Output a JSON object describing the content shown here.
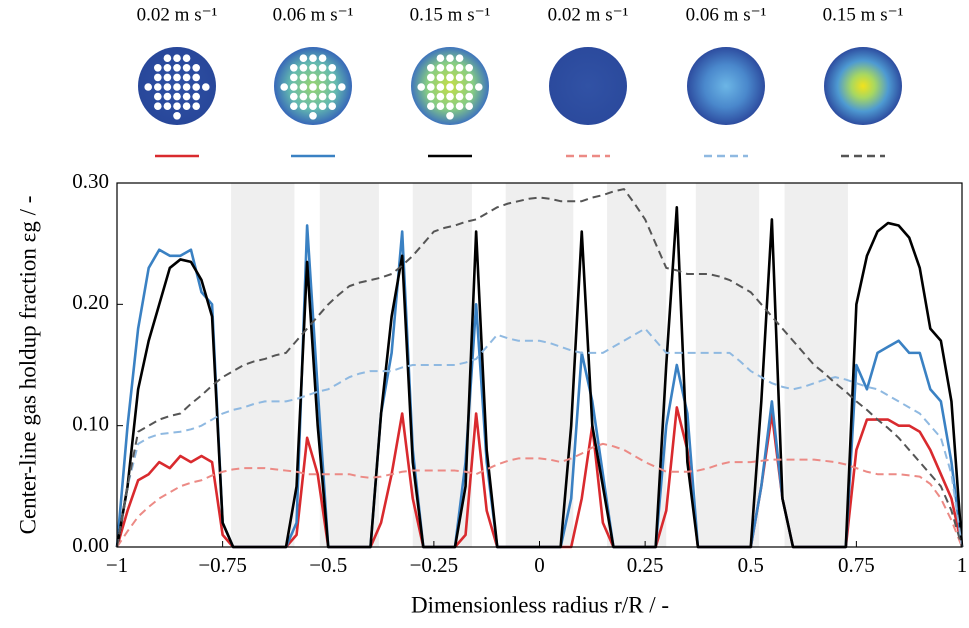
{
  "chart_data": {
    "type": "line",
    "xlabel": "Dimensionless radius r/R / -",
    "ylabel": "Center-line gas holdup fraction εg / -",
    "xlim": [
      -1,
      1
    ],
    "ylim": [
      0,
      0.3
    ],
    "xticks": [
      {
        "value": -1,
        "label": "−1"
      },
      {
        "value": -0.75,
        "label": "−0.75"
      },
      {
        "value": -0.5,
        "label": "−0.5"
      },
      {
        "value": -0.25,
        "label": "−0.25"
      },
      0,
      0.25,
      0.5,
      0.75,
      1
    ],
    "yticks": [
      {
        "value": 0,
        "label": "0.00"
      },
      {
        "value": 0.1,
        "label": "0.10"
      },
      {
        "value": 0.2,
        "label": "0.20"
      },
      {
        "value": 0.3,
        "label": "0.30"
      }
    ],
    "shaded_regions": [
      [
        -0.73,
        -0.58
      ],
      [
        -0.52,
        -0.38
      ],
      [
        -0.3,
        -0.16
      ],
      [
        -0.08,
        0.08
      ],
      [
        0.16,
        0.3
      ],
      [
        0.37,
        0.52
      ],
      [
        0.58,
        0.73
      ]
    ],
    "x": [
      -1,
      -0.975,
      -0.95,
      -0.925,
      -0.9,
      -0.875,
      -0.85,
      -0.825,
      -0.8,
      -0.775,
      -0.75,
      -0.725,
      -0.7,
      -0.675,
      -0.65,
      -0.625,
      -0.6,
      -0.575,
      -0.55,
      -0.525,
      -0.5,
      -0.475,
      -0.45,
      -0.425,
      -0.4,
      -0.375,
      -0.35,
      -0.325,
      -0.3,
      -0.275,
      -0.25,
      -0.225,
      -0.2,
      -0.175,
      -0.15,
      -0.125,
      -0.1,
      -0.075,
      -0.05,
      -0.025,
      0,
      0.025,
      0.05,
      0.075,
      0.1,
      0.125,
      0.15,
      0.175,
      0.2,
      0.225,
      0.25,
      0.275,
      0.3,
      0.325,
      0.35,
      0.375,
      0.4,
      0.425,
      0.45,
      0.475,
      0.5,
      0.525,
      0.55,
      0.575,
      0.6,
      0.625,
      0.65,
      0.675,
      0.7,
      0.725,
      0.75,
      0.775,
      0.8,
      0.825,
      0.85,
      0.875,
      0.9,
      0.925,
      0.95,
      0.975,
      1
    ],
    "series": [
      {
        "name": "0.02 m s⁻¹",
        "color": "#d92a2e",
        "linestyle": "solid",
        "values": [
          0,
          0.03,
          0.055,
          0.06,
          0.07,
          0.065,
          0.075,
          0.07,
          0.075,
          0.07,
          0.01,
          0,
          0,
          0,
          0,
          0,
          0,
          0.01,
          0.09,
          0.06,
          0,
          0,
          0,
          0,
          0,
          0.02,
          0.06,
          0.11,
          0.04,
          0,
          0,
          0,
          0,
          0.01,
          0.11,
          0.03,
          0,
          0,
          0,
          0,
          0,
          0,
          0,
          0,
          0.04,
          0.1,
          0.02,
          0,
          0,
          0,
          0,
          0,
          0.03,
          0.115,
          0.08,
          0,
          0,
          0,
          0,
          0,
          0,
          0.05,
          0.11,
          0.04,
          0,
          0,
          0,
          0,
          0,
          0,
          0.08,
          0.105,
          0.105,
          0.105,
          0.1,
          0.1,
          0.095,
          0.08,
          0.06,
          0.04,
          0
        ]
      },
      {
        "name": "0.06 m s⁻¹",
        "color": "#3a81c3",
        "linestyle": "solid",
        "values": [
          0,
          0.1,
          0.18,
          0.23,
          0.245,
          0.24,
          0.24,
          0.245,
          0.21,
          0.2,
          0.02,
          0,
          0,
          0,
          0,
          0,
          0,
          0.02,
          0.265,
          0.13,
          0,
          0,
          0,
          0,
          0,
          0.11,
          0.16,
          0.26,
          0.08,
          0,
          0,
          0,
          0,
          0.07,
          0.2,
          0.07,
          0,
          0,
          0,
          0,
          0,
          0,
          0,
          0.04,
          0.16,
          0.12,
          0.06,
          0,
          0,
          0,
          0,
          0,
          0.1,
          0.15,
          0.11,
          0,
          0,
          0,
          0,
          0,
          0,
          0.05,
          0.12,
          0.04,
          0,
          0,
          0,
          0,
          0,
          0,
          0.15,
          0.13,
          0.16,
          0.165,
          0.17,
          0.16,
          0.16,
          0.13,
          0.12,
          0.07,
          0
        ]
      },
      {
        "name": "0.15 m s⁻¹",
        "color": "#000000",
        "linestyle": "solid",
        "values": [
          0,
          0.05,
          0.13,
          0.17,
          0.2,
          0.23,
          0.237,
          0.235,
          0.22,
          0.19,
          0.02,
          0,
          0,
          0,
          0,
          0,
          0,
          0.05,
          0.235,
          0.1,
          0,
          0,
          0,
          0,
          0,
          0.11,
          0.19,
          0.24,
          0.07,
          0,
          0,
          0,
          0,
          0.05,
          0.26,
          0.08,
          0,
          0,
          0,
          0,
          0,
          0,
          0,
          0.1,
          0.26,
          0.1,
          0.05,
          0,
          0,
          0,
          0,
          0,
          0.15,
          0.28,
          0.07,
          0,
          0,
          0,
          0,
          0,
          0,
          0.12,
          0.27,
          0.04,
          0,
          0,
          0,
          0,
          0,
          0,
          0.2,
          0.24,
          0.26,
          0.267,
          0.265,
          0.255,
          0.23,
          0.18,
          0.17,
          0.12,
          0
        ]
      },
      {
        "name": "0.02 m s⁻¹",
        "color": "#ec8a85",
        "linestyle": "dashed",
        "values": [
          0,
          0.013,
          0.025,
          0.033,
          0.04,
          0.045,
          0.05,
          0.053,
          0.055,
          0.059,
          0.062,
          0.064,
          0.065,
          0.065,
          0.065,
          0.064,
          0.063,
          0.062,
          0.06,
          0.06,
          0.06,
          0.06,
          0.06,
          0.058,
          0.057,
          0.058,
          0.06,
          0.062,
          0.063,
          0.063,
          0.063,
          0.063,
          0.063,
          0.062,
          0.06,
          0.064,
          0.068,
          0.071,
          0.073,
          0.073,
          0.073,
          0.072,
          0.07,
          0.073,
          0.077,
          0.082,
          0.085,
          0.083,
          0.08,
          0.075,
          0.07,
          0.066,
          0.062,
          0.062,
          0.062,
          0.063,
          0.065,
          0.068,
          0.07,
          0.07,
          0.07,
          0.071,
          0.072,
          0.072,
          0.072,
          0.072,
          0.072,
          0.071,
          0.07,
          0.068,
          0.065,
          0.062,
          0.06,
          0.06,
          0.06,
          0.059,
          0.058,
          0.052,
          0.04,
          0.022,
          0
        ]
      },
      {
        "name": "0.06 m s⁻¹",
        "color": "#8fb9e1",
        "linestyle": "dashed",
        "values": [
          0,
          0.05,
          0.085,
          0.09,
          0.093,
          0.094,
          0.095,
          0.097,
          0.1,
          0.105,
          0.11,
          0.113,
          0.115,
          0.118,
          0.12,
          0.12,
          0.12,
          0.122,
          0.125,
          0.128,
          0.13,
          0.135,
          0.14,
          0.143,
          0.145,
          0.145,
          0.145,
          0.148,
          0.15,
          0.15,
          0.15,
          0.15,
          0.15,
          0.152,
          0.155,
          0.165,
          0.175,
          0.172,
          0.17,
          0.17,
          0.17,
          0.168,
          0.165,
          0.162,
          0.16,
          0.16,
          0.16,
          0.165,
          0.17,
          0.175,
          0.18,
          0.17,
          0.16,
          0.16,
          0.16,
          0.16,
          0.16,
          0.16,
          0.16,
          0.153,
          0.145,
          0.14,
          0.135,
          0.132,
          0.13,
          0.132,
          0.135,
          0.138,
          0.14,
          0.138,
          0.135,
          0.132,
          0.13,
          0.125,
          0.12,
          0.115,
          0.11,
          0.1,
          0.09,
          0.06,
          0
        ]
      },
      {
        "name": "0.15 m s⁻¹",
        "color": "#555555",
        "linestyle": "dashed",
        "values": [
          0,
          0.05,
          0.095,
          0.1,
          0.105,
          0.108,
          0.11,
          0.118,
          0.125,
          0.133,
          0.14,
          0.145,
          0.15,
          0.153,
          0.155,
          0.158,
          0.16,
          0.17,
          0.18,
          0.19,
          0.2,
          0.208,
          0.215,
          0.218,
          0.22,
          0.222,
          0.225,
          0.232,
          0.24,
          0.25,
          0.26,
          0.263,
          0.265,
          0.268,
          0.27,
          0.275,
          0.28,
          0.283,
          0.285,
          0.287,
          0.288,
          0.287,
          0.285,
          0.285,
          0.285,
          0.288,
          0.29,
          0.293,
          0.295,
          0.283,
          0.27,
          0.25,
          0.23,
          0.228,
          0.225,
          0.225,
          0.225,
          0.223,
          0.22,
          0.215,
          0.21,
          0.2,
          0.19,
          0.18,
          0.17,
          0.16,
          0.15,
          0.143,
          0.135,
          0.128,
          0.12,
          0.113,
          0.105,
          0.098,
          0.09,
          0.08,
          0.07,
          0.06,
          0.05,
          0.03,
          0
        ]
      }
    ]
  }
}
